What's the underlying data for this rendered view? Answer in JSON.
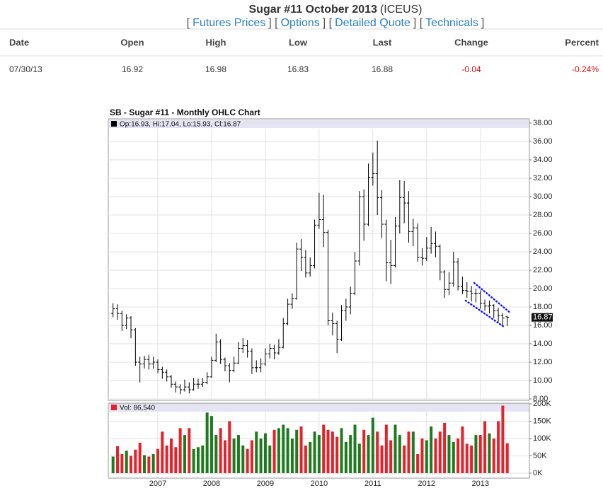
{
  "header": {
    "title": "Sugar #11 October 2013",
    "exchange": "(ICEUS)",
    "nav": [
      "[",
      "Futures Prices",
      "] [",
      "Options",
      "] [",
      "Detailed Quote",
      "] [",
      "Technicals",
      "]"
    ]
  },
  "table": {
    "columns": [
      "Date",
      "Open",
      "High",
      "Low",
      "Last",
      "Change",
      "Percent"
    ],
    "rows": [
      [
        "07/30/13",
        "16.92",
        "16.98",
        "16.83",
        "16.88",
        "-0.04",
        "-0.24%"
      ]
    ]
  },
  "chart_data": [
    {
      "type": "ohlc",
      "title": "SB - Sugar #11 - Monthly OHLC Chart",
      "legend": "Op:16.93, Hi:17.04, Lo:15.93, Cl:16.87",
      "color": "#000000",
      "categories": [
        null,
        null,
        null,
        null,
        null,
        null,
        null,
        null,
        null,
        null,
        "2007",
        null,
        null,
        null,
        null,
        null,
        null,
        null,
        null,
        null,
        null,
        null,
        "2008",
        null,
        null,
        null,
        null,
        null,
        null,
        null,
        null,
        null,
        null,
        null,
        "2009",
        null,
        null,
        null,
        null,
        null,
        null,
        null,
        null,
        null,
        null,
        null,
        "2010",
        null,
        null,
        null,
        null,
        null,
        null,
        null,
        null,
        null,
        null,
        null,
        "2011",
        null,
        null,
        null,
        null,
        null,
        null,
        null,
        null,
        null,
        null,
        null,
        "2012",
        null,
        null,
        null,
        null,
        null,
        null,
        null,
        null,
        null,
        null,
        null,
        "2013",
        null,
        null,
        null,
        null,
        null,
        null
      ],
      "open": [
        17.3,
        17.8,
        17.3,
        16.0,
        16.8,
        15.5,
        12.0,
        11.8,
        12.3,
        11.8,
        12.0,
        11.2,
        10.9,
        10.4,
        9.6,
        9.3,
        9.0,
        9.3,
        9.0,
        9.6,
        9.6,
        9.8,
        10.4,
        12.2,
        14.2,
        12.3,
        11.6,
        11.1,
        11.9,
        13.5,
        13.8,
        13.2,
        11.4,
        11.4,
        11.8,
        12.9,
        13.5,
        13.0,
        13.6,
        16.2,
        18.3,
        18.9,
        24.3,
        23.4,
        21.7,
        22.5,
        26.9,
        27.5,
        26.1,
        16.5,
        16.2,
        14.5,
        17.6,
        18.0,
        19.5,
        23.0,
        30.0,
        27.0,
        32.1,
        32.5,
        29.9,
        27.0,
        22.8,
        22.5,
        26.8,
        29.9,
        29.3,
        26.2,
        26.6,
        23.4,
        23.3,
        24.4,
        24.9,
        24.6,
        21.8,
        19.9,
        20.6,
        22.9,
        20.2,
        19.8,
        19.7,
        19.5,
        19.5,
        18.4,
        18.1,
        18.2,
        17.6,
        17.1,
        16.93
      ],
      "high": [
        18.4,
        18.3,
        17.6,
        17.2,
        17.0,
        15.7,
        12.6,
        12.7,
        12.8,
        12.6,
        12.3,
        11.5,
        11.2,
        10.6,
        9.9,
        9.6,
        10.1,
        9.8,
        10.3,
        10.2,
        10.3,
        10.9,
        12.6,
        15.1,
        14.5,
        12.5,
        11.9,
        12.6,
        14.2,
        14.6,
        14.4,
        13.5,
        12.2,
        12.4,
        13.5,
        14.0,
        13.9,
        14.5,
        16.8,
        18.9,
        19.5,
        25.0,
        25.4,
        24.2,
        23.4,
        27.5,
        30.4,
        30.2,
        26.4,
        17.4,
        16.5,
        18.2,
        18.9,
        20.2,
        24.0,
        30.6,
        30.8,
        33.6,
        34.8,
        36.1,
        30.7,
        27.5,
        25.3,
        27.8,
        31.8,
        31.7,
        30.6,
        27.6,
        27.1,
        24.4,
        25.6,
        26.7,
        26.2,
        24.8,
        22.0,
        21.8,
        24.0,
        23.3,
        21.3,
        20.7,
        20.3,
        20.0,
        19.8,
        18.8,
        18.7,
        18.3,
        17.9,
        17.3,
        17.04
      ],
      "low": [
        16.9,
        16.6,
        15.4,
        15.6,
        14.6,
        11.6,
        9.8,
        11.3,
        11.2,
        11.3,
        10.8,
        10.2,
        9.9,
        9.2,
        8.7,
        8.5,
        8.8,
        8.6,
        8.9,
        9.1,
        9.3,
        9.6,
        10.3,
        12.0,
        11.8,
        11.0,
        9.8,
        10.9,
        11.8,
        13.0,
        12.5,
        10.7,
        10.9,
        10.9,
        11.6,
        12.4,
        12.3,
        12.8,
        13.5,
        16.0,
        17.8,
        18.8,
        21.9,
        21.2,
        21.3,
        22.2,
        26.5,
        24.5,
        16.0,
        14.9,
        13.0,
        14.3,
        16.5,
        17.2,
        19.3,
        22.5,
        25.2,
        26.8,
        31.2,
        28.0,
        25.5,
        20.8,
        20.5,
        22.3,
        26.0,
        27.1,
        25.0,
        24.6,
        22.9,
        22.5,
        23.0,
        23.8,
        23.4,
        20.9,
        19.0,
        19.3,
        20.2,
        19.8,
        19.4,
        19.0,
        18.6,
        18.5,
        17.8,
        17.6,
        17.3,
        16.8,
        16.4,
        16.0,
        15.93
      ],
      "close": [
        17.8,
        17.3,
        16.0,
        16.8,
        15.5,
        12.0,
        11.8,
        12.3,
        11.8,
        12.0,
        11.2,
        10.9,
        10.4,
        9.6,
        9.3,
        9.0,
        9.3,
        9.0,
        9.6,
        9.6,
        9.8,
        10.4,
        12.2,
        14.2,
        12.3,
        11.6,
        11.1,
        11.9,
        13.5,
        13.8,
        13.2,
        11.4,
        11.4,
        11.8,
        12.9,
        13.5,
        13.0,
        13.6,
        16.2,
        18.3,
        18.9,
        24.3,
        23.4,
        21.7,
        22.5,
        26.9,
        27.5,
        26.1,
        16.5,
        16.2,
        14.5,
        17.6,
        18.0,
        19.5,
        23.0,
        30.0,
        27.0,
        32.1,
        32.5,
        29.9,
        27.0,
        22.8,
        22.5,
        26.8,
        29.9,
        29.3,
        26.2,
        26.6,
        23.4,
        23.3,
        24.4,
        24.9,
        24.6,
        21.8,
        19.9,
        20.6,
        22.9,
        20.2,
        19.8,
        19.7,
        19.5,
        19.5,
        18.4,
        18.1,
        18.2,
        17.6,
        17.1,
        16.8,
        16.87
      ],
      "ylim": [
        8,
        38
      ],
      "yticks": [
        {
          "value": 8,
          "label": "8.00"
        },
        {
          "value": 10,
          "label": "10.00"
        },
        {
          "value": 12,
          "label": "12.00"
        },
        {
          "value": 14,
          "label": "14.00"
        },
        {
          "value": 16,
          "label": "16.00"
        },
        {
          "value": 18,
          "label": "18.00"
        },
        {
          "value": 20,
          "label": "20.00"
        },
        {
          "value": 22,
          "label": "22.00"
        },
        {
          "value": 24,
          "label": "24.00"
        },
        {
          "value": 26,
          "label": "26.00"
        },
        {
          "value": 28,
          "label": "28.00"
        },
        {
          "value": 30,
          "label": "30.00"
        },
        {
          "value": 32,
          "label": "32.00"
        },
        {
          "value": 34,
          "label": "34.00"
        },
        {
          "value": 36,
          "label": "36.00"
        },
        {
          "value": 38,
          "label": "38.00"
        }
      ],
      "grid": true
    },
    {
      "type": "bar",
      "legend": "Vol: 86,540",
      "up_color": "#1e7a1e",
      "down_color": "#e8202a",
      "values": [
        48000,
        78000,
        55000,
        65000,
        50000,
        68000,
        88000,
        52000,
        48000,
        55000,
        70000,
        120000,
        80000,
        100000,
        75000,
        130000,
        110000,
        130000,
        70000,
        75000,
        80000,
        175000,
        165000,
        110000,
        130000,
        95000,
        150000,
        100000,
        110000,
        80000,
        70000,
        95000,
        120000,
        100000,
        115000,
        80000,
        125000,
        130000,
        140000,
        130000,
        100000,
        125000,
        135000,
        80000,
        90000,
        120000,
        110000,
        140000,
        125000,
        120000,
        105000,
        130000,
        90000,
        110000,
        140000,
        85000,
        125000,
        110000,
        160000,
        120000,
        80000,
        140000,
        95000,
        140000,
        110000,
        80000,
        120000,
        120000,
        55000,
        100000,
        95000,
        135000,
        100000,
        120000,
        145000,
        110000,
        90000,
        100000,
        135000,
        85000,
        80000,
        110000,
        110000,
        150000,
        115000,
        100000,
        150000,
        195000,
        86540
      ],
      "ylim": [
        0,
        200000
      ],
      "yticks": [
        {
          "value": 0,
          "label": "0K"
        },
        {
          "value": 50000,
          "label": "50K"
        },
        {
          "value": 100000,
          "label": "100K"
        },
        {
          "value": 150000,
          "label": "150K"
        },
        {
          "value": 200000,
          "label": "200K"
        }
      ],
      "grid": true
    }
  ]
}
